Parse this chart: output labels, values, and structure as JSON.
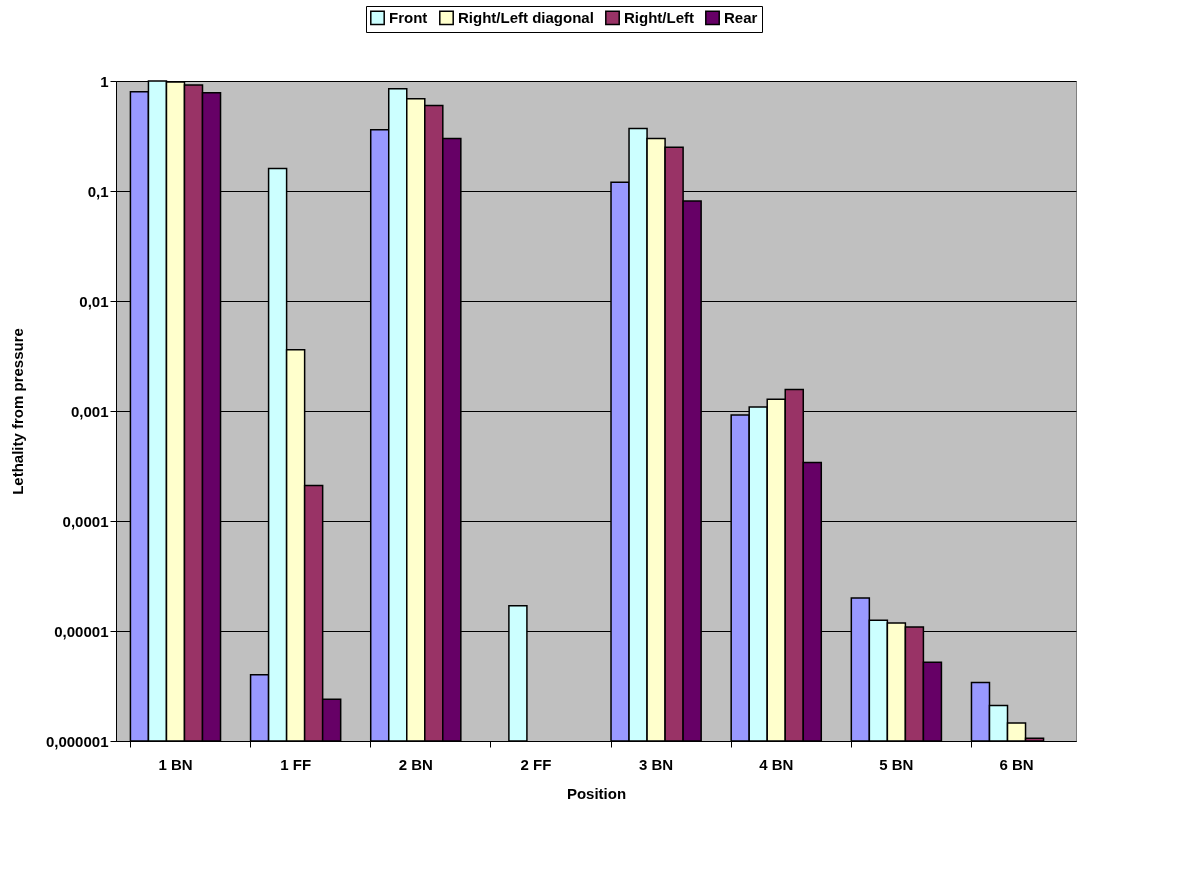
{
  "chart_data": {
    "type": "bar",
    "xlabel": "Position",
    "ylabel": "Lethality from pressure",
    "categories": [
      "1 BN",
      "1 FF",
      "2 BN",
      "2 FF",
      "3 BN",
      "4 BN",
      "5 BN",
      "6 BN"
    ],
    "series": [
      {
        "color": "#9999ff",
        "values": [
          0.8,
          4e-06,
          0.36,
          null,
          0.12,
          0.00092,
          2e-05,
          3.4e-06
        ]
      },
      {
        "name": "Front",
        "color": "#ccffff",
        "values": [
          1.0,
          0.16,
          0.85,
          1.7e-05,
          0.37,
          0.00109,
          1.25e-05,
          2.1e-06
        ]
      },
      {
        "name": "Right/Left diagonal",
        "color": "#ffffcc",
        "values": [
          0.98,
          0.0036,
          0.69,
          null,
          0.3,
          0.00128,
          1.18e-05,
          1.46e-06
        ]
      },
      {
        "name": "Right/Left",
        "color": "#993366",
        "values": [
          0.92,
          0.00021,
          0.6,
          null,
          0.25,
          0.00157,
          1.09e-05,
          1.06e-06
        ]
      },
      {
        "name": "Rear",
        "color": "#660066",
        "values": [
          0.78,
          2.4e-06,
          0.3,
          null,
          0.081,
          0.00034,
          5.2e-06,
          null
        ]
      }
    ],
    "log": true,
    "ylim": [
      1e-06,
      1
    ],
    "yticks": [
      {
        "value": 1e-06,
        "label": "0,000001"
      },
      {
        "value": 1e-05,
        "label": "0,00001"
      },
      {
        "value": 0.0001,
        "label": "0,0001"
      },
      {
        "value": 0.001,
        "label": "0,001"
      },
      {
        "value": 0.01,
        "label": "0,01"
      },
      {
        "value": 0.1,
        "label": "0,1"
      },
      1
    ],
    "grid": "y",
    "legend": "top"
  }
}
